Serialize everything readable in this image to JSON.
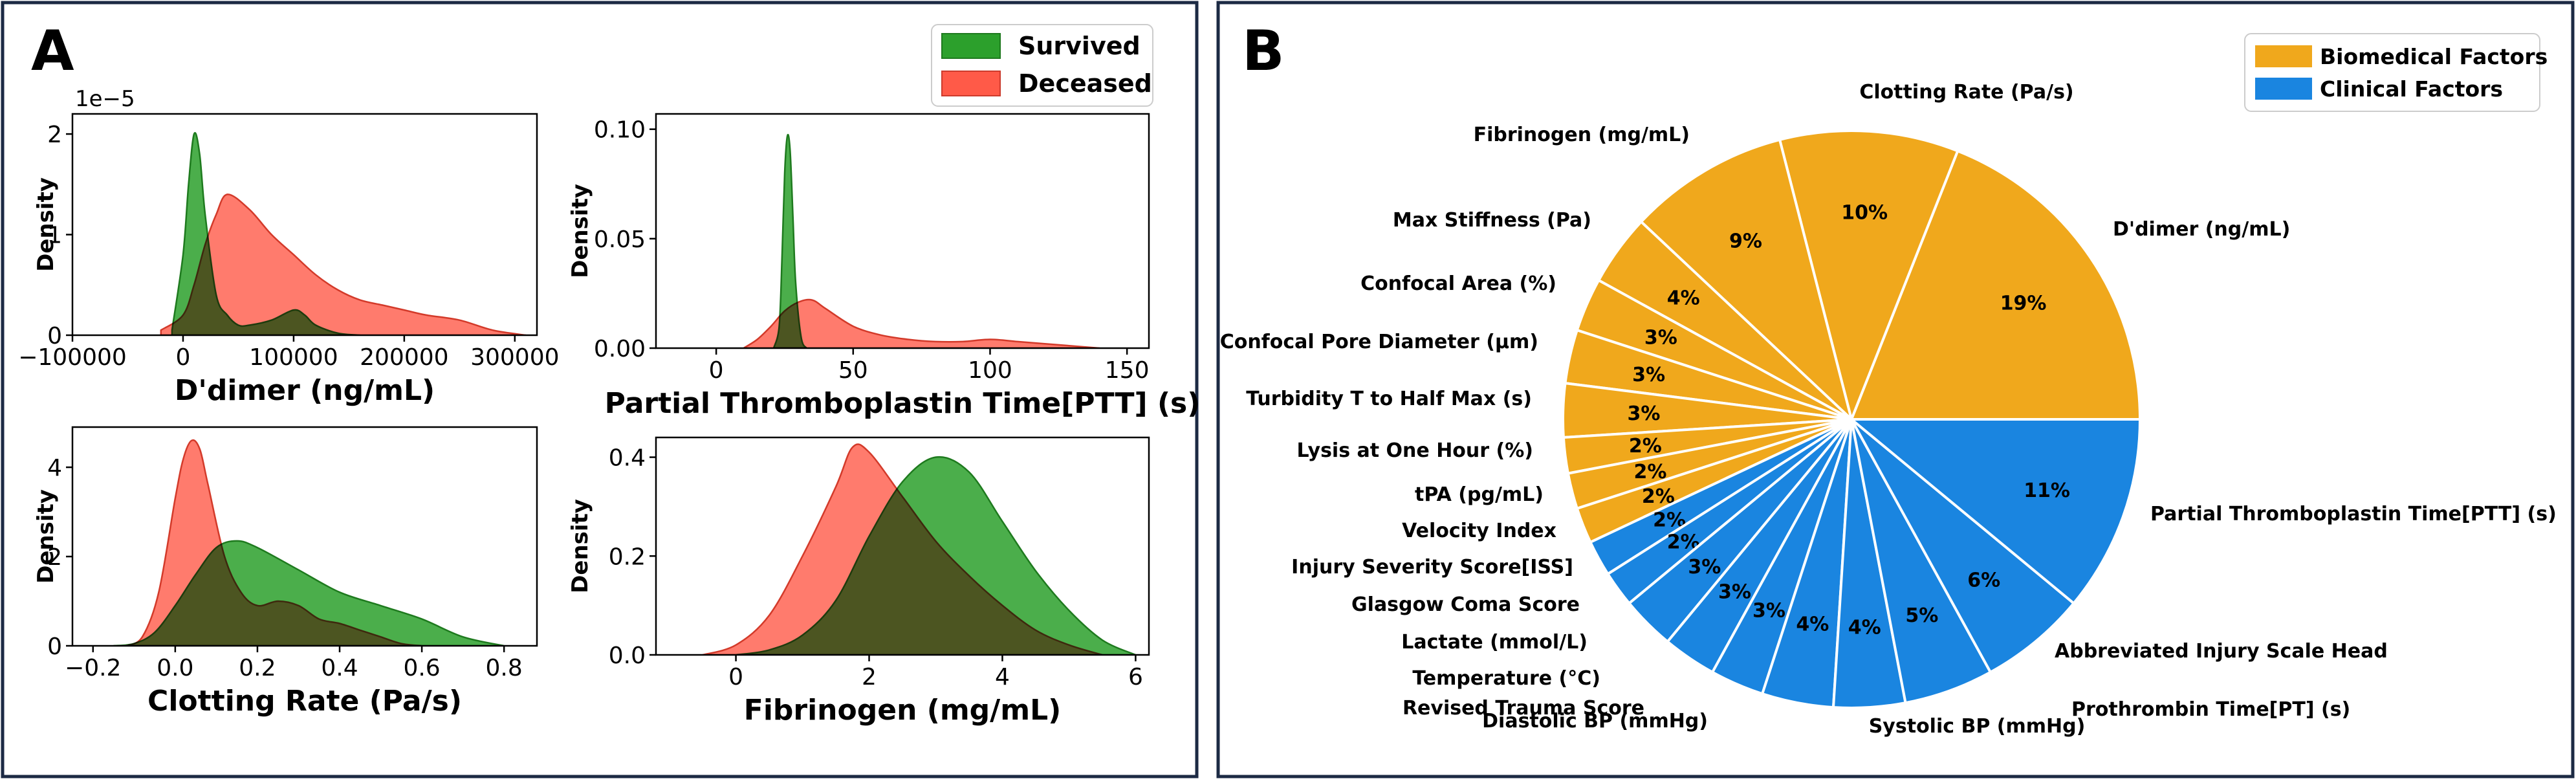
{
  "panels": {
    "a_label": "A",
    "b_label": "B"
  },
  "colors": {
    "survived": "#2ca02c",
    "deceased": "#ff5a48",
    "overlap": "#a3602f",
    "biomedical": "#f0a81c",
    "clinical": "#1a85e0",
    "frame": "#1c2a44"
  },
  "chart_data": [
    {
      "type": "area",
      "title": "",
      "xlabel": "D'dimer (ng/mL)",
      "ylabel": "Density",
      "offset_text": "1e−5",
      "xlim": [
        -100000,
        320000
      ],
      "ylim": [
        0,
        2.2
      ],
      "xticks": [
        -100000,
        0,
        100000,
        200000,
        300000
      ],
      "xtick_labels": [
        "−100000",
        "0",
        "100000",
        "200000",
        "300000"
      ],
      "yticks": [
        0,
        1,
        2
      ],
      "ytick_labels": [
        "0",
        "1",
        "2"
      ],
      "legend": "top-right",
      "series": [
        {
          "name": "Survived",
          "x": [
            -10000,
            0,
            5000,
            10000,
            15000,
            20000,
            30000,
            40000,
            50000,
            60000,
            80000,
            100000,
            110000,
            120000,
            140000,
            160000
          ],
          "y": [
            0.05,
            0.8,
            1.5,
            2.0,
            1.8,
            1.2,
            0.4,
            0.2,
            0.1,
            0.1,
            0.15,
            0.25,
            0.2,
            0.1,
            0.02,
            0
          ]
        },
        {
          "name": "Deceased",
          "x": [
            -20000,
            0,
            10000,
            20000,
            30000,
            40000,
            60000,
            80000,
            100000,
            120000,
            140000,
            160000,
            180000,
            200000,
            220000,
            250000,
            280000,
            310000
          ],
          "y": [
            0.05,
            0.2,
            0.5,
            0.9,
            1.2,
            1.4,
            1.25,
            1.0,
            0.8,
            0.6,
            0.45,
            0.35,
            0.3,
            0.25,
            0.2,
            0.15,
            0.05,
            0
          ]
        }
      ]
    },
    {
      "type": "area",
      "title": "",
      "xlabel": "Partial Thromboplastin Time[PTT] (s)",
      "ylabel": "Density",
      "xlim": [
        -22,
        158
      ],
      "ylim": [
        0,
        0.107
      ],
      "xticks": [
        0,
        50,
        100,
        150
      ],
      "xtick_labels": [
        "0",
        "50",
        "100",
        "150"
      ],
      "yticks": [
        0,
        0.05,
        0.1
      ],
      "ytick_labels": [
        "0.00",
        "0.05",
        "0.10"
      ],
      "series": [
        {
          "name": "Survived",
          "x": [
            21,
            23,
            24,
            25,
            26,
            27,
            28,
            29,
            31,
            33
          ],
          "y": [
            0,
            0.01,
            0.04,
            0.08,
            0.097,
            0.09,
            0.06,
            0.03,
            0.005,
            0
          ]
        },
        {
          "name": "Deceased",
          "x": [
            10,
            15,
            20,
            25,
            30,
            35,
            40,
            50,
            60,
            70,
            80,
            90,
            100,
            110,
            120,
            140
          ],
          "y": [
            0,
            0.004,
            0.01,
            0.017,
            0.021,
            0.022,
            0.018,
            0.01,
            0.006,
            0.004,
            0.003,
            0.003,
            0.004,
            0.003,
            0.002,
            0
          ]
        }
      ]
    },
    {
      "type": "area",
      "title": "",
      "xlabel": "Clotting Rate (Pa/s)",
      "ylabel": "Density",
      "xlim": [
        -0.25,
        0.88
      ],
      "ylim": [
        0,
        4.9
      ],
      "xticks": [
        -0.2,
        0,
        0.2,
        0.4,
        0.6,
        0.8
      ],
      "xtick_labels": [
        "−0.2",
        "0.0",
        "0.2",
        "0.4",
        "0.6",
        "0.8"
      ],
      "yticks": [
        0,
        2,
        4
      ],
      "ytick_labels": [
        "0",
        "2",
        "4"
      ],
      "series": [
        {
          "name": "Survived",
          "x": [
            -0.15,
            -0.1,
            -0.05,
            0,
            0.05,
            0.1,
            0.15,
            0.2,
            0.3,
            0.4,
            0.5,
            0.6,
            0.7,
            0.8
          ],
          "y": [
            0,
            0.05,
            0.3,
            0.9,
            1.6,
            2.2,
            2.35,
            2.2,
            1.7,
            1.2,
            0.9,
            0.6,
            0.2,
            0
          ]
        },
        {
          "name": "Deceased",
          "x": [
            -0.12,
            -0.08,
            -0.04,
            0,
            0.02,
            0.04,
            0.06,
            0.08,
            0.12,
            0.16,
            0.2,
            0.25,
            0.3,
            0.35,
            0.4,
            0.45,
            0.5,
            0.55,
            0.6
          ],
          "y": [
            0,
            0.2,
            1.2,
            3.3,
            4.2,
            4.6,
            4.4,
            3.6,
            2.0,
            1.2,
            0.9,
            1.0,
            0.9,
            0.6,
            0.5,
            0.35,
            0.2,
            0.05,
            0
          ]
        }
      ]
    },
    {
      "type": "area",
      "title": "",
      "xlabel": "Fibrinogen (mg/mL)",
      "ylabel": "Density",
      "xlim": [
        -1.2,
        6.2
      ],
      "ylim": [
        0,
        0.44
      ],
      "xticks": [
        0,
        2,
        4,
        6
      ],
      "xtick_labels": [
        "0",
        "2",
        "4",
        "6"
      ],
      "yticks": [
        0,
        0.2,
        0.4
      ],
      "ytick_labels": [
        "0.0",
        "0.2",
        "0.4"
      ],
      "series": [
        {
          "name": "Survived",
          "x": [
            0,
            0.5,
            1,
            1.5,
            2,
            2.5,
            3,
            3.5,
            4,
            4.5,
            5,
            5.5,
            6
          ],
          "y": [
            0,
            0.01,
            0.04,
            0.11,
            0.24,
            0.35,
            0.4,
            0.37,
            0.27,
            0.17,
            0.09,
            0.03,
            0.0
          ]
        },
        {
          "name": "Deceased",
          "x": [
            -0.5,
            0,
            0.5,
            1,
            1.5,
            1.75,
            2,
            2.5,
            3,
            3.5,
            4,
            4.5,
            5,
            5.5
          ],
          "y": [
            0,
            0.02,
            0.08,
            0.2,
            0.34,
            0.42,
            0.41,
            0.32,
            0.23,
            0.16,
            0.1,
            0.05,
            0.02,
            0
          ]
        }
      ]
    },
    {
      "type": "pie",
      "legend": "top-right",
      "legend_entries": [
        {
          "name": "Biomedical Factors",
          "color": "#f0a81c"
        },
        {
          "name": "Clinical Factors",
          "color": "#1a85e0"
        }
      ],
      "slices": [
        {
          "label": "D'dimer (ng/mL)",
          "value": 19,
          "group": "biomedical",
          "pct": "19%"
        },
        {
          "label": "Clotting Rate (Pa/s)",
          "value": 10,
          "group": "biomedical",
          "pct": "10%"
        },
        {
          "label": "Fibrinogen (mg/mL)",
          "value": 9,
          "group": "biomedical",
          "pct": "9%"
        },
        {
          "label": "Max Stiffness (Pa)",
          "value": 4,
          "group": "biomedical",
          "pct": "4%"
        },
        {
          "label": "Confocal Area (%)",
          "value": 3,
          "group": "biomedical",
          "pct": "3%"
        },
        {
          "label": "Confocal Pore Diameter (µm)",
          "value": 3,
          "group": "biomedical",
          "pct": "3%"
        },
        {
          "label": "Turbidity T to Half Max (s)",
          "value": 3,
          "group": "biomedical",
          "pct": "3%"
        },
        {
          "label": "Lysis at One Hour (%)",
          "value": 2,
          "group": "biomedical",
          "pct": "2%"
        },
        {
          "label": "tPA (pg/mL)",
          "value": 2,
          "group": "biomedical",
          "pct": "2%"
        },
        {
          "label": "Velocity Index",
          "value": 2,
          "group": "biomedical",
          "pct": "2%"
        },
        {
          "label": "Injury Severity Score[ISS]",
          "value": 2,
          "group": "clinical",
          "pct": "2%"
        },
        {
          "label": "Glasgow Coma Score",
          "value": 2,
          "group": "clinical",
          "pct": "2%"
        },
        {
          "label": "Lactate (mmol/L)",
          "value": 3,
          "group": "clinical",
          "pct": "3%"
        },
        {
          "label": "Temperature (°C)",
          "value": 3,
          "group": "clinical",
          "pct": "3%"
        },
        {
          "label": "Revised Trauma Score",
          "value": 3,
          "group": "clinical",
          "pct": "3%"
        },
        {
          "label": "Diastolic BP (mmHg)",
          "value": 4,
          "group": "clinical",
          "pct": "4%"
        },
        {
          "label": "Systolic BP (mmHg)",
          "value": 4,
          "group": "clinical",
          "pct": "4%"
        },
        {
          "label": "Prothrombin Time[PT] (s)",
          "value": 5,
          "group": "clinical",
          "pct": "5%"
        },
        {
          "label": "Abbreviated Injury Scale Head",
          "value": 6,
          "group": "clinical",
          "pct": "6%"
        },
        {
          "label": "Partial Thromboplastin Time[PTT] (s)",
          "value": 11,
          "group": "clinical",
          "pct": "11%"
        }
      ]
    }
  ]
}
